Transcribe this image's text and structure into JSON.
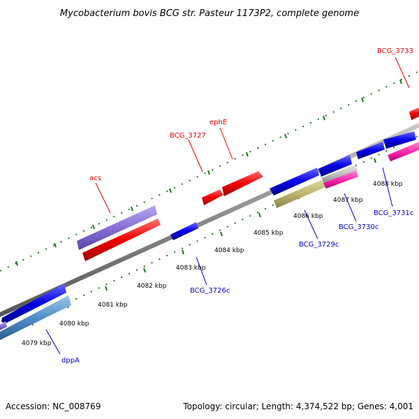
{
  "title": "Mycobacterium bovis BCG str. Pasteur 1173P2, complete genome",
  "footer": {
    "accession": "Accession: NC_008769",
    "topology": "Topology: circular; Length: 4,374,522 bp; Genes: 4,001"
  },
  "colors": {
    "backbone": "#8a8a8a",
    "tick": "#1a7a1a",
    "forward_label": "#e60000",
    "reverse_label": "#0000cc"
  },
  "ticks": [
    {
      "label": "4079 kbp"
    },
    {
      "label": "4080 kbp"
    },
    {
      "label": "4081 kbp"
    },
    {
      "label": "4082 kbp"
    },
    {
      "label": "4083 kbp"
    },
    {
      "label": "4084 kbp"
    },
    {
      "label": "4085 kbp"
    },
    {
      "label": "4086 kbp"
    },
    {
      "label": "4087 kbp"
    },
    {
      "label": "4088 kbp"
    }
  ],
  "gene_labels": [
    {
      "text": "acs",
      "strand": "forward"
    },
    {
      "text": "BCG_3727",
      "strand": "forward"
    },
    {
      "text": "ephE",
      "strand": "forward"
    },
    {
      "text": "BCG_3733",
      "strand": "forward"
    },
    {
      "text": "BCG_3726c",
      "strand": "reverse"
    },
    {
      "text": "BCG_3729c",
      "strand": "reverse"
    },
    {
      "text": "BCG_3730c",
      "strand": "reverse"
    },
    {
      "text": "BCG_3731c",
      "strand": "reverse"
    },
    {
      "text": "dppA",
      "strand": "reverse"
    }
  ]
}
